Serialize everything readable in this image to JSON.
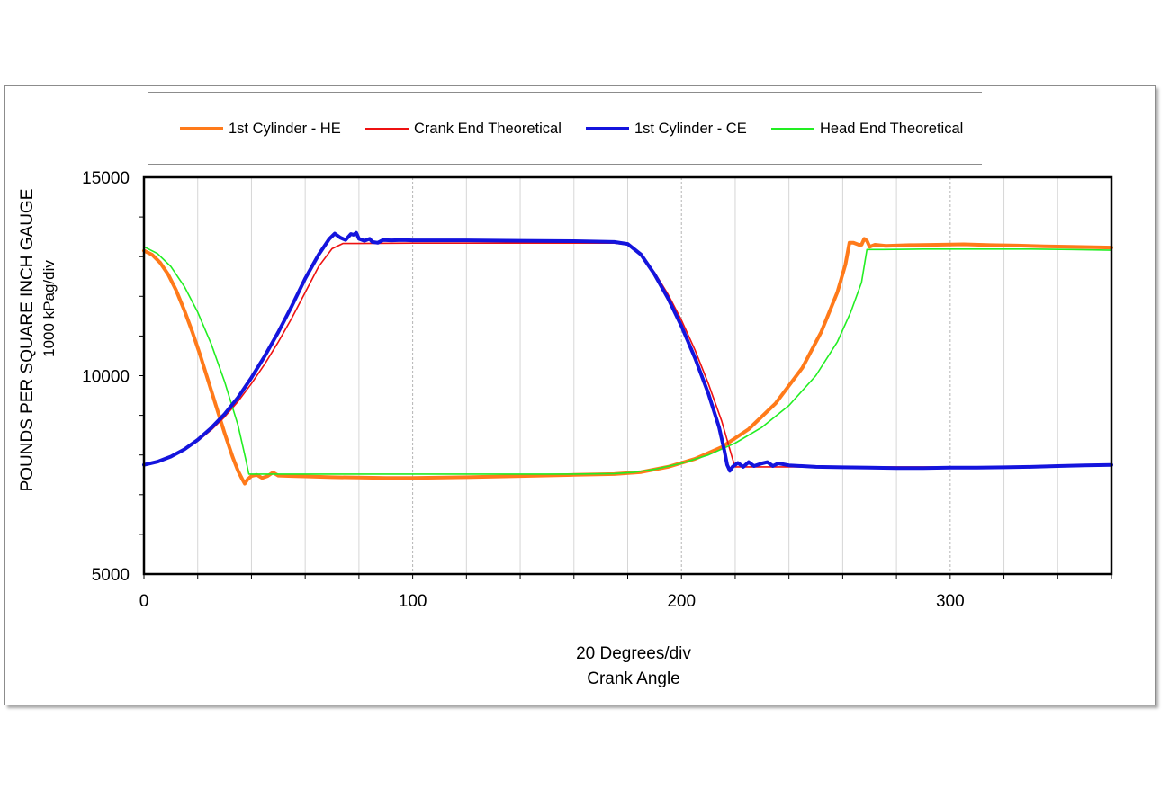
{
  "chart_data": {
    "type": "line",
    "title": "",
    "xlabel_line1": "20 Degrees/div",
    "xlabel_line2": "Crank Angle",
    "ylabel_line1": "POUNDS PER SQUARE INCH GAUGE",
    "ylabel_line2": "1000 kPag/div",
    "xlim": [
      0,
      360
    ],
    "ylim": [
      5000,
      15000
    ],
    "x_ticks": [
      0,
      100,
      200,
      300
    ],
    "y_ticks": [
      5000,
      10000,
      15000
    ],
    "x_minor_step": 20,
    "grid": true,
    "legend_position": "top",
    "series": [
      {
        "name": "1st Cylinder - HE",
        "color": "#ff7a1a",
        "points": [
          [
            0,
            13150
          ],
          [
            3,
            13050
          ],
          [
            6,
            12850
          ],
          [
            9,
            12550
          ],
          [
            12,
            12150
          ],
          [
            15,
            11650
          ],
          [
            18,
            11100
          ],
          [
            21,
            10500
          ],
          [
            24,
            9850
          ],
          [
            27,
            9200
          ],
          [
            30,
            8550
          ],
          [
            33,
            7950
          ],
          [
            35,
            7600
          ],
          [
            36.5,
            7400
          ],
          [
            37.5,
            7280
          ],
          [
            38.5,
            7380
          ],
          [
            40,
            7470
          ],
          [
            42,
            7500
          ],
          [
            44,
            7420
          ],
          [
            46,
            7470
          ],
          [
            48,
            7560
          ],
          [
            50,
            7480
          ],
          [
            55,
            7470
          ],
          [
            60,
            7460
          ],
          [
            70,
            7440
          ],
          [
            80,
            7430
          ],
          [
            90,
            7420
          ],
          [
            100,
            7420
          ],
          [
            120,
            7440
          ],
          [
            140,
            7470
          ],
          [
            160,
            7500
          ],
          [
            175,
            7520
          ],
          [
            185,
            7570
          ],
          [
            195,
            7700
          ],
          [
            205,
            7900
          ],
          [
            215,
            8200
          ],
          [
            225,
            8650
          ],
          [
            235,
            9300
          ],
          [
            245,
            10200
          ],
          [
            252,
            11100
          ],
          [
            258,
            12100
          ],
          [
            261,
            12800
          ],
          [
            262.5,
            13350
          ],
          [
            264,
            13350
          ],
          [
            266,
            13300
          ],
          [
            267,
            13300
          ],
          [
            268,
            13450
          ],
          [
            269,
            13400
          ],
          [
            270,
            13250
          ],
          [
            272,
            13300
          ],
          [
            276,
            13270
          ],
          [
            285,
            13290
          ],
          [
            295,
            13300
          ],
          [
            305,
            13310
          ],
          [
            315,
            13290
          ],
          [
            325,
            13280
          ],
          [
            335,
            13260
          ],
          [
            345,
            13250
          ],
          [
            360,
            13230
          ]
        ]
      },
      {
        "name": "Crank End Theoretical",
        "color": "#ee1111",
        "points": [
          [
            0,
            7750
          ],
          [
            5,
            7820
          ],
          [
            10,
            7950
          ],
          [
            15,
            8120
          ],
          [
            20,
            8350
          ],
          [
            25,
            8630
          ],
          [
            30,
            8960
          ],
          [
            35,
            9350
          ],
          [
            40,
            9800
          ],
          [
            45,
            10300
          ],
          [
            50,
            10850
          ],
          [
            55,
            11450
          ],
          [
            60,
            12100
          ],
          [
            65,
            12750
          ],
          [
            70,
            13200
          ],
          [
            74,
            13330
          ],
          [
            80,
            13330
          ],
          [
            100,
            13340
          ],
          [
            120,
            13340
          ],
          [
            140,
            13340
          ],
          [
            160,
            13340
          ],
          [
            175,
            13340
          ],
          [
            180,
            13300
          ],
          [
            185,
            13050
          ],
          [
            190,
            12600
          ],
          [
            195,
            12050
          ],
          [
            200,
            11400
          ],
          [
            205,
            10650
          ],
          [
            210,
            9800
          ],
          [
            215,
            8850
          ],
          [
            219,
            7900
          ],
          [
            220,
            7700
          ],
          [
            230,
            7700
          ],
          [
            250,
            7700
          ],
          [
            270,
            7700
          ],
          [
            290,
            7700
          ],
          [
            310,
            7700
          ],
          [
            330,
            7700
          ],
          [
            345,
            7710
          ],
          [
            360,
            7730
          ]
        ]
      },
      {
        "name": "1st Cylinder - CE",
        "color": "#1414dd",
        "points": [
          [
            0,
            7750
          ],
          [
            5,
            7830
          ],
          [
            10,
            7960
          ],
          [
            15,
            8140
          ],
          [
            20,
            8380
          ],
          [
            25,
            8680
          ],
          [
            30,
            9030
          ],
          [
            35,
            9450
          ],
          [
            40,
            9950
          ],
          [
            45,
            10500
          ],
          [
            50,
            11100
          ],
          [
            55,
            11750
          ],
          [
            60,
            12450
          ],
          [
            65,
            13050
          ],
          [
            69,
            13450
          ],
          [
            71,
            13580
          ],
          [
            73,
            13480
          ],
          [
            75,
            13420
          ],
          [
            77,
            13570
          ],
          [
            78,
            13550
          ],
          [
            79,
            13600
          ],
          [
            80,
            13450
          ],
          [
            82,
            13400
          ],
          [
            84,
            13450
          ],
          [
            85,
            13370
          ],
          [
            87,
            13350
          ],
          [
            89,
            13420
          ],
          [
            92,
            13410
          ],
          [
            96,
            13420
          ],
          [
            100,
            13410
          ],
          [
            120,
            13410
          ],
          [
            140,
            13400
          ],
          [
            160,
            13390
          ],
          [
            175,
            13370
          ],
          [
            180,
            13320
          ],
          [
            185,
            13050
          ],
          [
            190,
            12550
          ],
          [
            195,
            11950
          ],
          [
            200,
            11250
          ],
          [
            205,
            10450
          ],
          [
            210,
            9550
          ],
          [
            214,
            8700
          ],
          [
            216,
            8100
          ],
          [
            217,
            7750
          ],
          [
            218,
            7600
          ],
          [
            219,
            7700
          ],
          [
            221,
            7800
          ],
          [
            223,
            7700
          ],
          [
            225,
            7820
          ],
          [
            227,
            7720
          ],
          [
            230,
            7790
          ],
          [
            232,
            7820
          ],
          [
            234,
            7720
          ],
          [
            236,
            7790
          ],
          [
            240,
            7740
          ],
          [
            250,
            7700
          ],
          [
            260,
            7690
          ],
          [
            270,
            7680
          ],
          [
            280,
            7670
          ],
          [
            290,
            7670
          ],
          [
            300,
            7680
          ],
          [
            310,
            7680
          ],
          [
            320,
            7690
          ],
          [
            330,
            7700
          ],
          [
            340,
            7720
          ],
          [
            350,
            7740
          ],
          [
            360,
            7750
          ]
        ]
      },
      {
        "name": "Head End Theoretical",
        "color": "#22ee22",
        "points": [
          [
            0,
            13250
          ],
          [
            5,
            13080
          ],
          [
            10,
            12750
          ],
          [
            15,
            12250
          ],
          [
            20,
            11600
          ],
          [
            25,
            10800
          ],
          [
            30,
            9850
          ],
          [
            35,
            8750
          ],
          [
            38,
            7850
          ],
          [
            39,
            7520
          ],
          [
            45,
            7520
          ],
          [
            60,
            7520
          ],
          [
            80,
            7520
          ],
          [
            100,
            7520
          ],
          [
            120,
            7520
          ],
          [
            140,
            7520
          ],
          [
            160,
            7520
          ],
          [
            175,
            7530
          ],
          [
            182,
            7560
          ],
          [
            190,
            7640
          ],
          [
            200,
            7790
          ],
          [
            210,
            8000
          ],
          [
            220,
            8300
          ],
          [
            230,
            8700
          ],
          [
            240,
            9250
          ],
          [
            250,
            10000
          ],
          [
            258,
            10850
          ],
          [
            263,
            11600
          ],
          [
            267,
            12350
          ],
          [
            269,
            13180
          ],
          [
            275,
            13180
          ],
          [
            290,
            13190
          ],
          [
            310,
            13190
          ],
          [
            330,
            13190
          ],
          [
            345,
            13180
          ],
          [
            360,
            13160
          ]
        ]
      }
    ]
  }
}
